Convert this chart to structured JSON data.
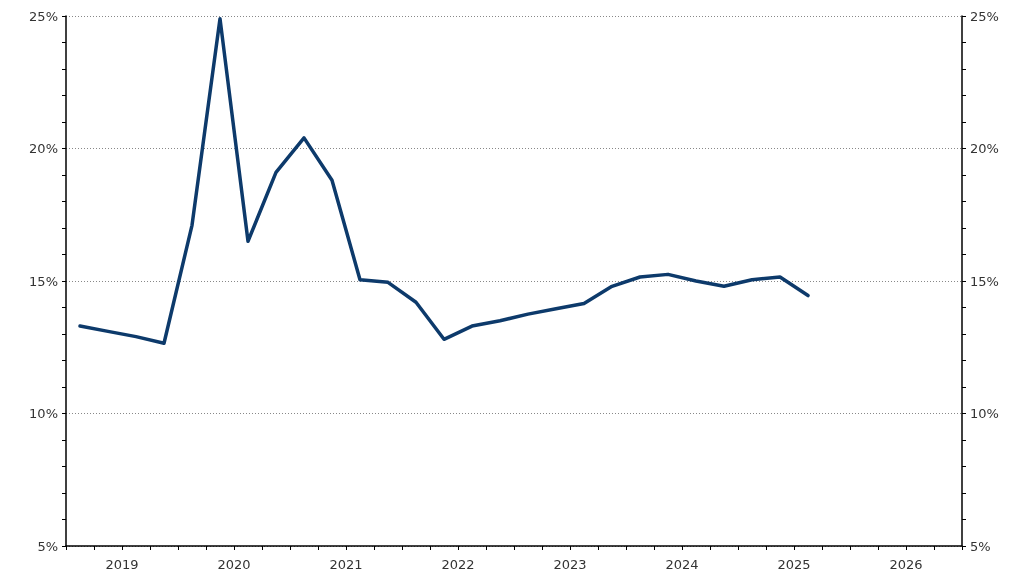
{
  "chart_data": {
    "type": "line",
    "x": [
      2019.125,
      2019.375,
      2019.625,
      2019.875,
      2020.125,
      2020.375,
      2020.625,
      2020.875,
      2021.125,
      2021.375,
      2021.625,
      2021.875,
      2022.125,
      2022.375,
      2022.625,
      2022.875,
      2023.125,
      2023.375,
      2023.625,
      2023.875,
      2024.125,
      2024.375,
      2024.625,
      2024.875,
      2025.125,
      2025.375,
      2025.625
    ],
    "series": [
      {
        "color": "#0d3a6b",
        "values": [
          13.3,
          13.1,
          12.9,
          12.65,
          17.1,
          24.9,
          16.5,
          19.1,
          20.4,
          18.8,
          15.05,
          14.95,
          14.2,
          12.8,
          13.3,
          13.5,
          13.75,
          13.95,
          14.15,
          14.8,
          15.15,
          15.25,
          15.0,
          14.8,
          15.05,
          15.15,
          14.45
        ]
      }
    ],
    "xlim": [
      2019,
      2027
    ],
    "xticks": [
      {
        "value": 2019,
        "label": null
      },
      {
        "value": 2019.25,
        "label": null
      },
      {
        "value": 2019.5,
        "label": "2019"
      },
      {
        "value": 2019.75,
        "label": null
      },
      {
        "value": 2020,
        "label": null
      },
      {
        "value": 2020.25,
        "label": null
      },
      {
        "value": 2020.5,
        "label": "2020"
      },
      {
        "value": 2020.75,
        "label": null
      },
      {
        "value": 2021,
        "label": null
      },
      {
        "value": 2021.25,
        "label": null
      },
      {
        "value": 2021.5,
        "label": "2021"
      },
      {
        "value": 2021.75,
        "label": null
      },
      {
        "value": 2022,
        "label": null
      },
      {
        "value": 2022.25,
        "label": null
      },
      {
        "value": 2022.5,
        "label": "2022"
      },
      {
        "value": 2022.75,
        "label": null
      },
      {
        "value": 2023,
        "label": null
      },
      {
        "value": 2023.25,
        "label": null
      },
      {
        "value": 2023.5,
        "label": "2023"
      },
      {
        "value": 2023.75,
        "label": null
      },
      {
        "value": 2024,
        "label": null
      },
      {
        "value": 2024.25,
        "label": null
      },
      {
        "value": 2024.5,
        "label": "2024"
      },
      {
        "value": 2024.75,
        "label": null
      },
      {
        "value": 2025,
        "label": null
      },
      {
        "value": 2025.25,
        "label": null
      },
      {
        "value": 2025.5,
        "label": "2025"
      },
      {
        "value": 2025.75,
        "label": null
      },
      {
        "value": 2026,
        "label": null
      },
      {
        "value": 2026.25,
        "label": null
      },
      {
        "value": 2026.5,
        "label": "2026"
      },
      {
        "value": 2026.75,
        "label": null
      },
      {
        "value": 2027,
        "label": null
      }
    ],
    "ylim": [
      5,
      25
    ],
    "yticks": [
      {
        "value": 5,
        "label": "5%"
      },
      {
        "value": 6,
        "label": null
      },
      {
        "value": 7,
        "label": null
      },
      {
        "value": 8,
        "label": null
      },
      {
        "value": 9,
        "label": null
      },
      {
        "value": 10,
        "label": "10%"
      },
      {
        "value": 11,
        "label": null
      },
      {
        "value": 12,
        "label": null
      },
      {
        "value": 13,
        "label": null
      },
      {
        "value": 14,
        "label": null
      },
      {
        "value": 15,
        "label": "15%"
      },
      {
        "value": 16,
        "label": null
      },
      {
        "value": 17,
        "label": null
      },
      {
        "value": 18,
        "label": null
      },
      {
        "value": 19,
        "label": null
      },
      {
        "value": 20,
        "label": "20%"
      },
      {
        "value": 21,
        "label": null
      },
      {
        "value": 22,
        "label": null
      },
      {
        "value": 23,
        "label": null
      },
      {
        "value": 24,
        "label": null
      },
      {
        "value": 25,
        "label": "25%"
      }
    ],
    "y2lim": [
      5,
      25
    ],
    "y2ticks": [
      {
        "value": 5,
        "label": "5%"
      },
      {
        "value": 6,
        "label": null
      },
      {
        "value": 7,
        "label": null
      },
      {
        "value": 8,
        "label": null
      },
      {
        "value": 9,
        "label": null
      },
      {
        "value": 10,
        "label": "10%"
      },
      {
        "value": 11,
        "label": null
      },
      {
        "value": 12,
        "label": null
      },
      {
        "value": 13,
        "label": null
      },
      {
        "value": 14,
        "label": null
      },
      {
        "value": 15,
        "label": "15%"
      },
      {
        "value": 16,
        "label": null
      },
      {
        "value": 17,
        "label": null
      },
      {
        "value": 18,
        "label": null
      },
      {
        "value": 19,
        "label": null
      },
      {
        "value": 20,
        "label": "20%"
      },
      {
        "value": 21,
        "label": null
      },
      {
        "value": 22,
        "label": null
      },
      {
        "value": 23,
        "label": null
      },
      {
        "value": 24,
        "label": null
      },
      {
        "value": 25,
        "label": "25%"
      }
    ],
    "grid": "y",
    "marker": "none",
    "line_style": "solid"
  }
}
